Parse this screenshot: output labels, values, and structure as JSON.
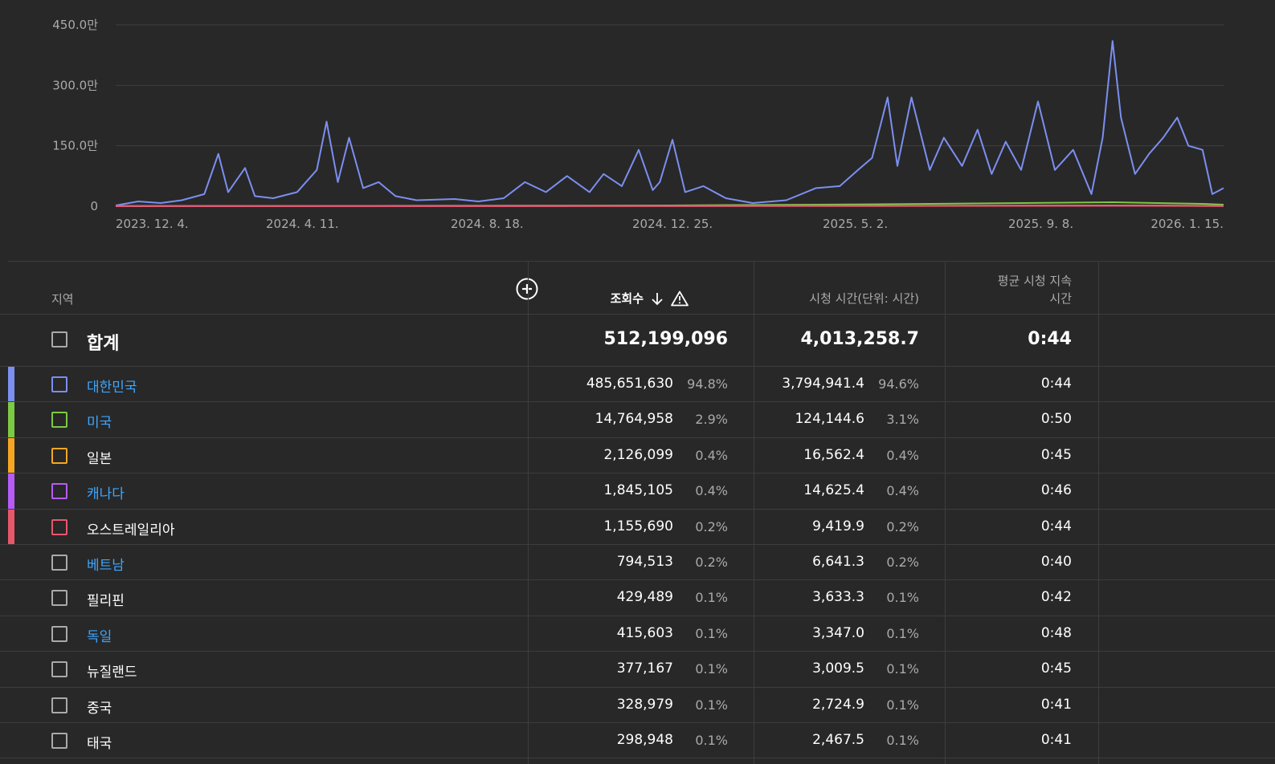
{
  "chart_data": {
    "type": "line",
    "y_tick_labels": [
      "450.0만",
      "300.0만",
      "150.0만",
      "0"
    ],
    "y_ticks": [
      4500000,
      3000000,
      1500000,
      0
    ],
    "ylim": [
      0,
      4500000
    ],
    "x_tick_labels": [
      "2023. 12. 4.",
      "2024. 4. 11.",
      "2024. 8. 18.",
      "2024. 12. 25.",
      "2025. 5. 2.",
      "2025. 9. 8.",
      "2026. 1. 15."
    ],
    "x_range": [
      "2023-12-04",
      "2026-01-30"
    ],
    "grid": true,
    "series": [
      {
        "color": "#7b8ff0",
        "points": [
          [
            "2023-12-04",
            20000
          ],
          [
            "2023-12-20",
            120000
          ],
          [
            "2024-01-05",
            80000
          ],
          [
            "2024-01-20",
            150000
          ],
          [
            "2024-02-05",
            300000
          ],
          [
            "2024-02-15",
            1300000
          ],
          [
            "2024-02-22",
            350000
          ],
          [
            "2024-03-05",
            950000
          ],
          [
            "2024-03-12",
            250000
          ],
          [
            "2024-03-25",
            200000
          ],
          [
            "2024-04-11",
            350000
          ],
          [
            "2024-04-25",
            900000
          ],
          [
            "2024-05-02",
            2100000
          ],
          [
            "2024-05-10",
            600000
          ],
          [
            "2024-05-18",
            1700000
          ],
          [
            "2024-05-28",
            450000
          ],
          [
            "2024-06-08",
            600000
          ],
          [
            "2024-06-20",
            250000
          ],
          [
            "2024-07-05",
            150000
          ],
          [
            "2024-08-01",
            180000
          ],
          [
            "2024-08-18",
            120000
          ],
          [
            "2024-09-05",
            200000
          ],
          [
            "2024-09-20",
            600000
          ],
          [
            "2024-10-05",
            350000
          ],
          [
            "2024-10-20",
            750000
          ],
          [
            "2024-11-05",
            350000
          ],
          [
            "2024-11-15",
            800000
          ],
          [
            "2024-11-28",
            500000
          ],
          [
            "2024-12-10",
            1400000
          ],
          [
            "2024-12-20",
            400000
          ],
          [
            "2024-12-25",
            600000
          ],
          [
            "2025-01-03",
            1650000
          ],
          [
            "2025-01-12",
            350000
          ],
          [
            "2025-01-25",
            500000
          ],
          [
            "2025-02-10",
            200000
          ],
          [
            "2025-03-01",
            80000
          ],
          [
            "2025-03-25",
            150000
          ],
          [
            "2025-04-15",
            450000
          ],
          [
            "2025-05-02",
            500000
          ],
          [
            "2025-05-15",
            900000
          ],
          [
            "2025-05-25",
            1200000
          ],
          [
            "2025-06-05",
            2700000
          ],
          [
            "2025-06-12",
            1000000
          ],
          [
            "2025-06-22",
            2700000
          ],
          [
            "2025-07-05",
            900000
          ],
          [
            "2025-07-15",
            1700000
          ],
          [
            "2025-07-28",
            1000000
          ],
          [
            "2025-08-08",
            1900000
          ],
          [
            "2025-08-18",
            800000
          ],
          [
            "2025-08-28",
            1600000
          ],
          [
            "2025-09-08",
            900000
          ],
          [
            "2025-09-20",
            2600000
          ],
          [
            "2025-10-02",
            900000
          ],
          [
            "2025-10-15",
            1400000
          ],
          [
            "2025-10-28",
            300000
          ],
          [
            "2025-11-05",
            1700000
          ],
          [
            "2025-11-12",
            4100000
          ],
          [
            "2025-11-18",
            2200000
          ],
          [
            "2025-11-28",
            800000
          ],
          [
            "2025-12-08",
            1300000
          ],
          [
            "2025-12-18",
            1700000
          ],
          [
            "2025-12-28",
            2200000
          ],
          [
            "2026-01-05",
            1500000
          ],
          [
            "2026-01-15",
            1400000
          ],
          [
            "2026-01-22",
            300000
          ],
          [
            "2026-01-30",
            450000
          ]
        ]
      },
      {
        "color": "#7cc943",
        "points": [
          [
            "2023-12-04",
            5000
          ],
          [
            "2024-06-01",
            10000
          ],
          [
            "2025-01-01",
            20000
          ],
          [
            "2025-06-01",
            50000
          ],
          [
            "2025-09-08",
            80000
          ],
          [
            "2025-11-12",
            100000
          ],
          [
            "2026-01-15",
            60000
          ],
          [
            "2026-01-30",
            40000
          ]
        ]
      },
      {
        "color": "#f5a623",
        "points": [
          [
            "2023-12-04",
            3000
          ],
          [
            "2025-06-01",
            10000
          ],
          [
            "2025-11-12",
            20000
          ],
          [
            "2026-01-30",
            10000
          ]
        ]
      },
      {
        "color": "#b65cf5",
        "points": [
          [
            "2023-12-04",
            3000
          ],
          [
            "2025-06-01",
            8000
          ],
          [
            "2025-11-12",
            15000
          ],
          [
            "2026-01-30",
            8000
          ]
        ]
      },
      {
        "color": "#e8576a",
        "points": [
          [
            "2023-12-04",
            3000
          ],
          [
            "2025-06-01",
            8000
          ],
          [
            "2025-11-12",
            12000
          ],
          [
            "2026-01-30",
            6000
          ]
        ]
      }
    ]
  },
  "table": {
    "header": {
      "region": "지역",
      "views": "조회수",
      "watch_time": "시청 시간(단위: 시간)",
      "avg_duration_line1": "평균 시청 지속",
      "avg_duration_line2": "시간"
    },
    "total": {
      "label": "합계",
      "views": "512,199,096",
      "watch_time": "4,013,258.7",
      "avg": "0:44"
    },
    "rows": [
      {
        "name": "대한민국",
        "link": true,
        "color": "#7b8ff0",
        "views": "485,651,630",
        "views_pct": "94.8%",
        "watch": "3,794,941.4",
        "watch_pct": "94.6%",
        "avg": "0:44"
      },
      {
        "name": "미국",
        "link": true,
        "color": "#7cc943",
        "views": "14,764,958",
        "views_pct": "2.9%",
        "watch": "124,144.6",
        "watch_pct": "3.1%",
        "avg": "0:50"
      },
      {
        "name": "일본",
        "link": false,
        "color": "#f5a623",
        "views": "2,126,099",
        "views_pct": "0.4%",
        "watch": "16,562.4",
        "watch_pct": "0.4%",
        "avg": "0:45"
      },
      {
        "name": "캐나다",
        "link": true,
        "color": "#b65cf5",
        "views": "1,845,105",
        "views_pct": "0.4%",
        "watch": "14,625.4",
        "watch_pct": "0.4%",
        "avg": "0:46"
      },
      {
        "name": "오스트레일리아",
        "link": false,
        "color": "#e8576a",
        "views": "1,155,690",
        "views_pct": "0.2%",
        "watch": "9,419.9",
        "watch_pct": "0.2%",
        "avg": "0:44"
      },
      {
        "name": "베트남",
        "link": true,
        "color": "",
        "views": "794,513",
        "views_pct": "0.2%",
        "watch": "6,641.3",
        "watch_pct": "0.2%",
        "avg": "0:40"
      },
      {
        "name": "필리핀",
        "link": false,
        "color": "",
        "views": "429,489",
        "views_pct": "0.1%",
        "watch": "3,633.3",
        "watch_pct": "0.1%",
        "avg": "0:42"
      },
      {
        "name": "독일",
        "link": true,
        "color": "",
        "views": "415,603",
        "views_pct": "0.1%",
        "watch": "3,347.0",
        "watch_pct": "0.1%",
        "avg": "0:48"
      },
      {
        "name": "뉴질랜드",
        "link": false,
        "color": "",
        "views": "377,167",
        "views_pct": "0.1%",
        "watch": "3,009.5",
        "watch_pct": "0.1%",
        "avg": "0:45"
      },
      {
        "name": "중국",
        "link": false,
        "color": "",
        "views": "328,979",
        "views_pct": "0.1%",
        "watch": "2,724.9",
        "watch_pct": "0.1%",
        "avg": "0:41"
      },
      {
        "name": "태국",
        "link": false,
        "color": "",
        "views": "298,948",
        "views_pct": "0.1%",
        "watch": "2,467.5",
        "watch_pct": "0.1%",
        "avg": "0:41"
      }
    ]
  },
  "icons": {
    "add_column": "plus-circle-icon",
    "sort": "arrow-down-icon",
    "warning": "warning-triangle-icon"
  }
}
